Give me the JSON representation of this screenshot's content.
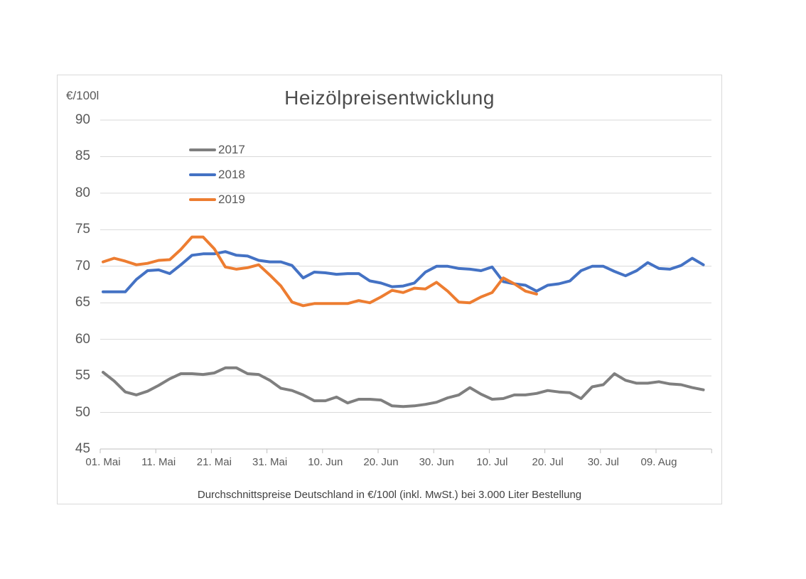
{
  "chart": {
    "title": "Heizölpreisentwicklung",
    "y_axis_unit": "€/100l",
    "footer": "Durchschnittspreise Deutschland in €/100l (inkl. MwSt.) bei 3.000 Liter Bestellung",
    "frame_border_color": "#D9D9D9",
    "gridline_color": "#D9D9D9",
    "axis_line_color": "#BFBFBF",
    "axis_text_color": "#595959"
  },
  "chart_data": {
    "type": "line",
    "title": "Heizölpreisentwicklung",
    "ylabel": "€/100l",
    "ylim": [
      45,
      90
    ],
    "y_ticks": [
      90,
      85,
      80,
      75,
      70,
      65,
      60,
      55,
      50,
      45
    ],
    "x_tick_labels": [
      "01. Mai",
      "11. Mai",
      "21. Mai",
      "31. Mai",
      "10. Jun",
      "20. Jun",
      "30. Jun",
      "10. Jul",
      "20. Jul",
      "30. Jul",
      "09. Aug"
    ],
    "x_axis": "daily dates, 01. Mai to mid-Aug; values below sampled every 2 days starting 01. Mai",
    "sample_interval_days": 2,
    "grid": "horizontal",
    "legend_position": "inside-top-left",
    "legend_entries": [
      "2017",
      "2018",
      "2019"
    ],
    "series": [
      {
        "name": "2017",
        "color": "#7F7F7F",
        "values": [
          55.5,
          54.3,
          52.8,
          52.4,
          52.9,
          53.7,
          54.6,
          55.3,
          55.3,
          55.2,
          55.4,
          56.1,
          56.1,
          55.3,
          55.2,
          54.4,
          53.3,
          53.0,
          52.4,
          51.6,
          51.6,
          52.1,
          51.3,
          51.8,
          51.8,
          51.7,
          50.9,
          50.8,
          50.9,
          51.1,
          51.4,
          52.0,
          52.4,
          53.4,
          52.5,
          51.8,
          51.9,
          52.4,
          52.4,
          52.6,
          53.0,
          52.8,
          52.7,
          51.9,
          53.5,
          53.8,
          55.3,
          54.4,
          54.0,
          54.0,
          54.2,
          53.9,
          53.8,
          53.4,
          53.1
        ]
      },
      {
        "name": "2018",
        "color": "#4472C4",
        "values": [
          66.5,
          66.5,
          66.5,
          68.2,
          69.4,
          69.5,
          69.0,
          70.2,
          71.5,
          71.7,
          71.7,
          72.0,
          71.5,
          71.4,
          70.8,
          70.6,
          70.6,
          70.1,
          68.4,
          69.2,
          69.1,
          68.9,
          69.0,
          69.0,
          68.0,
          67.7,
          67.2,
          67.3,
          67.7,
          69.2,
          70.0,
          70.0,
          69.7,
          69.6,
          69.4,
          69.9,
          67.9,
          67.6,
          67.4,
          66.6,
          67.4,
          67.6,
          68.0,
          69.4,
          70.0,
          70.0,
          69.3,
          68.7,
          69.4,
          70.5,
          69.7,
          69.6,
          70.1,
          71.1,
          70.2
        ]
      },
      {
        "name": "2019",
        "color": "#ED7D31",
        "note": "line ends mid-July",
        "values": [
          70.6,
          71.1,
          70.7,
          70.2,
          70.4,
          70.8,
          70.9,
          72.3,
          74.0,
          74.0,
          72.4,
          69.9,
          69.6,
          69.8,
          70.2,
          68.8,
          67.3,
          65.1,
          64.6,
          64.9,
          64.9,
          64.9,
          64.9,
          65.3,
          65.0,
          65.8,
          66.7,
          66.4,
          67.0,
          66.9,
          67.8,
          66.6,
          65.1,
          65.0,
          65.8,
          66.4,
          68.4,
          67.6,
          66.6,
          66.2
        ]
      }
    ]
  }
}
